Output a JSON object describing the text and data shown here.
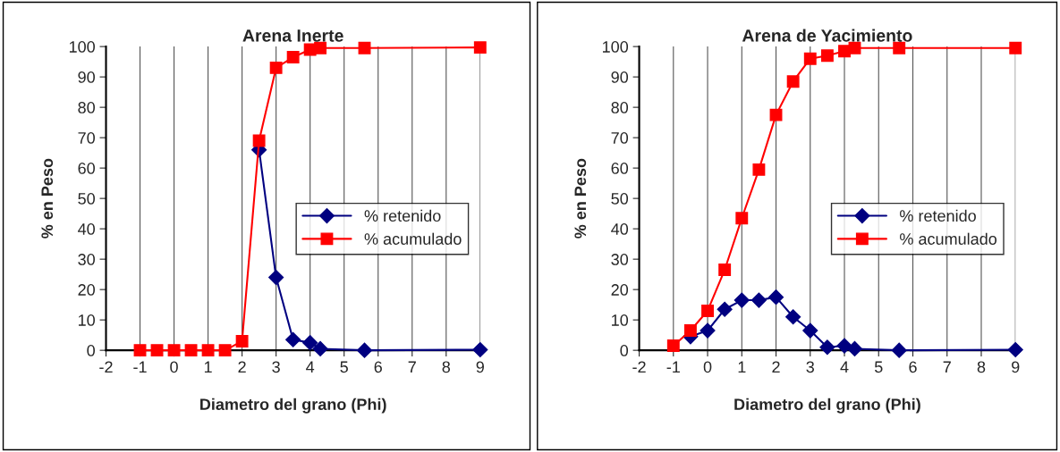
{
  "chart_data": [
    {
      "type": "line",
      "title": "Arena Inerte",
      "xlabel": "Diametro del grano (Phi)",
      "ylabel": "% en Peso",
      "x": [
        -1,
        -0.5,
        0,
        0.5,
        1,
        1.5,
        2,
        2.5,
        3,
        3.5,
        4,
        4.3,
        5.6,
        9
      ],
      "series": [
        {
          "name": "% retenido",
          "color": "#000080",
          "marker": "diamond",
          "values": [
            null,
            null,
            null,
            null,
            null,
            null,
            null,
            66,
            24,
            3.5,
            2.5,
            0.5,
            0,
            0.2
          ]
        },
        {
          "name": "% acumulado",
          "color": "#ff0000",
          "marker": "square",
          "values": [
            0,
            0,
            0,
            0,
            0,
            0,
            3,
            69,
            93,
            96.5,
            99,
            99.5,
            99.5,
            99.7
          ]
        }
      ],
      "xlim": [
        -2,
        9
      ],
      "xticks": [
        -2,
        -1,
        0,
        1,
        2,
        3,
        4,
        5,
        6,
        7,
        8,
        9
      ],
      "ylim": [
        0,
        100
      ],
      "yticks": [
        0,
        10,
        20,
        30,
        40,
        50,
        60,
        70,
        80,
        90,
        100
      ],
      "grid": "x",
      "legend": "right"
    },
    {
      "type": "line",
      "title": "Arena de Yacimiento",
      "xlabel": "Diametro del grano (Phi)",
      "ylabel": "% en Peso",
      "x": [
        -1,
        -0.5,
        0,
        0.5,
        1,
        1.5,
        2,
        2.5,
        3,
        3.5,
        4,
        4.3,
        5.6,
        9
      ],
      "series": [
        {
          "name": "% retenido",
          "color": "#000080",
          "marker": "diamond",
          "values": [
            null,
            4.5,
            6.5,
            13.5,
            16.5,
            16.5,
            17.5,
            11,
            6.5,
            1,
            1.5,
            0.5,
            0,
            0.2
          ]
        },
        {
          "name": "% acumulado",
          "color": "#ff0000",
          "marker": "square",
          "values": [
            1.5,
            6.5,
            13,
            26.5,
            43.5,
            59.5,
            77.5,
            88.5,
            96,
            97,
            98.5,
            99.5,
            99.5,
            99.5
          ]
        }
      ],
      "xlim": [
        -2,
        9
      ],
      "xticks": [
        -2,
        -1,
        0,
        1,
        2,
        3,
        4,
        5,
        6,
        7,
        8,
        9
      ],
      "ylim": [
        0,
        100
      ],
      "yticks": [
        0,
        10,
        20,
        30,
        40,
        50,
        60,
        70,
        80,
        90,
        100
      ],
      "grid": "x",
      "legend": "right"
    }
  ]
}
